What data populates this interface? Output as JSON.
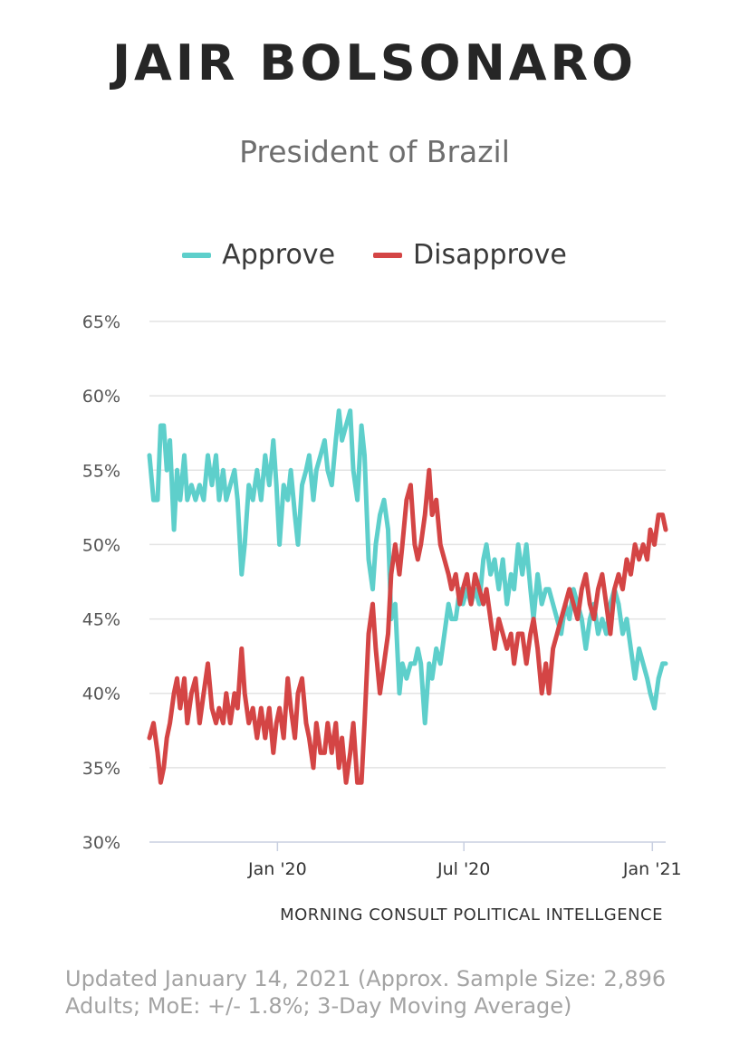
{
  "title": "JAIR BOLSONARO",
  "subtitle": "President of Brazil",
  "source": "MORNING CONSULT POLITICAL INTELLGENCE",
  "footnote": "Updated January 14, 2021 (Approx. Sample Size: 2,896 Adults; MoE: +/- 1.8%; 3-Day Moving Average)",
  "chart_data": {
    "type": "line",
    "title": "JAIR BOLSONARO",
    "subtitle": "President of Brazil",
    "xlabel": "",
    "ylabel": "",
    "ylim": [
      30,
      65
    ],
    "y_ticks": [
      "30%",
      "35%",
      "40%",
      "45%",
      "50%",
      "55%",
      "60%",
      "65%"
    ],
    "x_range": [
      "2019-08-29",
      "2021-01-14"
    ],
    "x_ticks": [
      {
        "label": "Jan '20",
        "date": "2020-01-01"
      },
      {
        "label": "Jul '20",
        "date": "2020-07-01"
      },
      {
        "label": "Jan '21",
        "date": "2021-01-01"
      }
    ],
    "legend_position": "top-center",
    "grid": true,
    "series": [
      {
        "name": "Approve",
        "color": "#5ecfcb",
        "points": [
          [
            "2019-08-29",
            56
          ],
          [
            "2019-09-02",
            53
          ],
          [
            "2019-09-06",
            53
          ],
          [
            "2019-09-09",
            58
          ],
          [
            "2019-09-12",
            58
          ],
          [
            "2019-09-15",
            55
          ],
          [
            "2019-09-18",
            57
          ],
          [
            "2019-09-22",
            51
          ],
          [
            "2019-09-25",
            55
          ],
          [
            "2019-09-28",
            53
          ],
          [
            "2019-10-02",
            56
          ],
          [
            "2019-10-05",
            53
          ],
          [
            "2019-10-09",
            54
          ],
          [
            "2019-10-13",
            53
          ],
          [
            "2019-10-17",
            54
          ],
          [
            "2019-10-21",
            53
          ],
          [
            "2019-10-25",
            56
          ],
          [
            "2019-10-29",
            54
          ],
          [
            "2019-11-02",
            56
          ],
          [
            "2019-11-05",
            53
          ],
          [
            "2019-11-09",
            55
          ],
          [
            "2019-11-12",
            53
          ],
          [
            "2019-11-16",
            54
          ],
          [
            "2019-11-20",
            55
          ],
          [
            "2019-11-23",
            53
          ],
          [
            "2019-11-27",
            48
          ],
          [
            "2019-11-30",
            50
          ],
          [
            "2019-12-04",
            54
          ],
          [
            "2019-12-08",
            53
          ],
          [
            "2019-12-12",
            55
          ],
          [
            "2019-12-16",
            53
          ],
          [
            "2019-12-20",
            56
          ],
          [
            "2019-12-24",
            54
          ],
          [
            "2019-12-28",
            57
          ],
          [
            "2019-12-31",
            54
          ],
          [
            "2020-01-03",
            50
          ],
          [
            "2020-01-07",
            54
          ],
          [
            "2020-01-11",
            53
          ],
          [
            "2020-01-14",
            55
          ],
          [
            "2020-01-18",
            52
          ],
          [
            "2020-01-21",
            50
          ],
          [
            "2020-01-25",
            54
          ],
          [
            "2020-01-29",
            55
          ],
          [
            "2020-02-01",
            56
          ],
          [
            "2020-02-05",
            53
          ],
          [
            "2020-02-08",
            55
          ],
          [
            "2020-02-12",
            56
          ],
          [
            "2020-02-16",
            57
          ],
          [
            "2020-02-19",
            55
          ],
          [
            "2020-02-23",
            54
          ],
          [
            "2020-02-27",
            57
          ],
          [
            "2020-03-01",
            59
          ],
          [
            "2020-03-04",
            57
          ],
          [
            "2020-03-08",
            58
          ],
          [
            "2020-03-12",
            59
          ],
          [
            "2020-03-15",
            55
          ],
          [
            "2020-03-19",
            53
          ],
          [
            "2020-03-23",
            58
          ],
          [
            "2020-03-26",
            56
          ],
          [
            "2020-03-30",
            49
          ],
          [
            "2020-04-03",
            47
          ],
          [
            "2020-04-06",
            50
          ],
          [
            "2020-04-10",
            52
          ],
          [
            "2020-04-14",
            53
          ],
          [
            "2020-04-18",
            51
          ],
          [
            "2020-04-21",
            45
          ],
          [
            "2020-04-25",
            46
          ],
          [
            "2020-04-29",
            40
          ],
          [
            "2020-05-02",
            42
          ],
          [
            "2020-05-06",
            41
          ],
          [
            "2020-05-10",
            42
          ],
          [
            "2020-05-14",
            42
          ],
          [
            "2020-05-17",
            43
          ],
          [
            "2020-05-20",
            42
          ],
          [
            "2020-05-24",
            38
          ],
          [
            "2020-05-28",
            42
          ],
          [
            "2020-05-31",
            41
          ],
          [
            "2020-06-04",
            43
          ],
          [
            "2020-06-08",
            42
          ],
          [
            "2020-06-12",
            44
          ],
          [
            "2020-06-16",
            46
          ],
          [
            "2020-06-19",
            45
          ],
          [
            "2020-06-23",
            45
          ],
          [
            "2020-06-27",
            47
          ],
          [
            "2020-06-30",
            46
          ],
          [
            "2020-07-04",
            47
          ],
          [
            "2020-07-08",
            46
          ],
          [
            "2020-07-12",
            47
          ],
          [
            "2020-07-16",
            46
          ],
          [
            "2020-07-20",
            49
          ],
          [
            "2020-07-23",
            50
          ],
          [
            "2020-07-27",
            48
          ],
          [
            "2020-07-31",
            49
          ],
          [
            "2020-08-04",
            47
          ],
          [
            "2020-08-08",
            49
          ],
          [
            "2020-08-12",
            46
          ],
          [
            "2020-08-16",
            48
          ],
          [
            "2020-08-19",
            47
          ],
          [
            "2020-08-23",
            50
          ],
          [
            "2020-08-27",
            48
          ],
          [
            "2020-08-31",
            50
          ],
          [
            "2020-09-04",
            47
          ],
          [
            "2020-09-07",
            45
          ],
          [
            "2020-09-11",
            48
          ],
          [
            "2020-09-15",
            46
          ],
          [
            "2020-09-19",
            47
          ],
          [
            "2020-09-22",
            47
          ],
          [
            "2020-09-26",
            46
          ],
          [
            "2020-09-30",
            45
          ],
          [
            "2020-10-04",
            44
          ],
          [
            "2020-10-08",
            46
          ],
          [
            "2020-10-12",
            45
          ],
          [
            "2020-10-16",
            47
          ],
          [
            "2020-10-20",
            46
          ],
          [
            "2020-10-24",
            45
          ],
          [
            "2020-10-28",
            43
          ],
          [
            "2020-11-01",
            45
          ],
          [
            "2020-11-05",
            46
          ],
          [
            "2020-11-09",
            44
          ],
          [
            "2020-11-13",
            45
          ],
          [
            "2020-11-17",
            44
          ],
          [
            "2020-11-21",
            46
          ],
          [
            "2020-11-25",
            47
          ],
          [
            "2020-11-29",
            46
          ],
          [
            "2020-12-03",
            44
          ],
          [
            "2020-12-07",
            45
          ],
          [
            "2020-12-11",
            43
          ],
          [
            "2020-12-15",
            41
          ],
          [
            "2020-12-19",
            43
          ],
          [
            "2020-12-23",
            42
          ],
          [
            "2020-12-27",
            41
          ],
          [
            "2020-12-30",
            40
          ],
          [
            "2021-01-03",
            39
          ],
          [
            "2021-01-07",
            41
          ],
          [
            "2021-01-11",
            42
          ],
          [
            "2021-01-14",
            42
          ]
        ]
      },
      {
        "name": "Disapprove",
        "color": "#d44545",
        "points": [
          [
            "2019-08-29",
            37
          ],
          [
            "2019-09-02",
            38
          ],
          [
            "2019-09-06",
            36
          ],
          [
            "2019-09-09",
            34
          ],
          [
            "2019-09-12",
            35
          ],
          [
            "2019-09-15",
            37
          ],
          [
            "2019-09-18",
            38
          ],
          [
            "2019-09-22",
            40
          ],
          [
            "2019-09-25",
            41
          ],
          [
            "2019-09-28",
            39
          ],
          [
            "2019-10-02",
            41
          ],
          [
            "2019-10-05",
            38
          ],
          [
            "2019-10-09",
            40
          ],
          [
            "2019-10-13",
            41
          ],
          [
            "2019-10-17",
            38
          ],
          [
            "2019-10-21",
            40
          ],
          [
            "2019-10-25",
            42
          ],
          [
            "2019-10-29",
            39
          ],
          [
            "2019-11-02",
            38
          ],
          [
            "2019-11-05",
            39
          ],
          [
            "2019-11-09",
            38
          ],
          [
            "2019-11-12",
            40
          ],
          [
            "2019-11-16",
            38
          ],
          [
            "2019-11-20",
            40
          ],
          [
            "2019-11-23",
            39
          ],
          [
            "2019-11-27",
            43
          ],
          [
            "2019-11-30",
            40
          ],
          [
            "2019-12-04",
            38
          ],
          [
            "2019-12-08",
            39
          ],
          [
            "2019-12-12",
            37
          ],
          [
            "2019-12-16",
            39
          ],
          [
            "2019-12-20",
            37
          ],
          [
            "2019-12-24",
            39
          ],
          [
            "2019-12-28",
            36
          ],
          [
            "2019-12-31",
            38
          ],
          [
            "2020-01-03",
            39
          ],
          [
            "2020-01-07",
            37
          ],
          [
            "2020-01-11",
            41
          ],
          [
            "2020-01-14",
            39
          ],
          [
            "2020-01-18",
            37
          ],
          [
            "2020-01-21",
            40
          ],
          [
            "2020-01-25",
            41
          ],
          [
            "2020-01-29",
            38
          ],
          [
            "2020-02-01",
            37
          ],
          [
            "2020-02-05",
            35
          ],
          [
            "2020-02-08",
            38
          ],
          [
            "2020-02-12",
            36
          ],
          [
            "2020-02-16",
            36
          ],
          [
            "2020-02-19",
            38
          ],
          [
            "2020-02-23",
            36
          ],
          [
            "2020-02-27",
            38
          ],
          [
            "2020-03-01",
            35
          ],
          [
            "2020-03-04",
            37
          ],
          [
            "2020-03-08",
            34
          ],
          [
            "2020-03-12",
            36
          ],
          [
            "2020-03-15",
            38
          ],
          [
            "2020-03-19",
            34
          ],
          [
            "2020-03-23",
            34
          ],
          [
            "2020-03-26",
            38
          ],
          [
            "2020-03-30",
            44
          ],
          [
            "2020-04-03",
            46
          ],
          [
            "2020-04-06",
            43
          ],
          [
            "2020-04-10",
            40
          ],
          [
            "2020-04-14",
            42
          ],
          [
            "2020-04-18",
            44
          ],
          [
            "2020-04-21",
            48
          ],
          [
            "2020-04-25",
            50
          ],
          [
            "2020-04-29",
            48
          ],
          [
            "2020-05-02",
            50
          ],
          [
            "2020-05-06",
            53
          ],
          [
            "2020-05-10",
            54
          ],
          [
            "2020-05-14",
            50
          ],
          [
            "2020-05-17",
            49
          ],
          [
            "2020-05-20",
            50
          ],
          [
            "2020-05-24",
            52
          ],
          [
            "2020-05-28",
            55
          ],
          [
            "2020-05-31",
            52
          ],
          [
            "2020-06-04",
            53
          ],
          [
            "2020-06-08",
            50
          ],
          [
            "2020-06-12",
            49
          ],
          [
            "2020-06-16",
            48
          ],
          [
            "2020-06-19",
            47
          ],
          [
            "2020-06-23",
            48
          ],
          [
            "2020-06-27",
            46
          ],
          [
            "2020-06-30",
            47
          ],
          [
            "2020-07-04",
            48
          ],
          [
            "2020-07-08",
            46
          ],
          [
            "2020-07-12",
            48
          ],
          [
            "2020-07-16",
            47
          ],
          [
            "2020-07-20",
            46
          ],
          [
            "2020-07-23",
            47
          ],
          [
            "2020-07-27",
            45
          ],
          [
            "2020-07-31",
            43
          ],
          [
            "2020-08-04",
            45
          ],
          [
            "2020-08-08",
            44
          ],
          [
            "2020-08-12",
            43
          ],
          [
            "2020-08-16",
            44
          ],
          [
            "2020-08-19",
            42
          ],
          [
            "2020-08-23",
            44
          ],
          [
            "2020-08-27",
            44
          ],
          [
            "2020-08-31",
            42
          ],
          [
            "2020-09-04",
            44
          ],
          [
            "2020-09-07",
            45
          ],
          [
            "2020-09-11",
            43
          ],
          [
            "2020-09-15",
            40
          ],
          [
            "2020-09-19",
            42
          ],
          [
            "2020-09-22",
            40
          ],
          [
            "2020-09-26",
            43
          ],
          [
            "2020-09-30",
            44
          ],
          [
            "2020-10-04",
            45
          ],
          [
            "2020-10-08",
            46
          ],
          [
            "2020-10-12",
            47
          ],
          [
            "2020-10-16",
            46
          ],
          [
            "2020-10-20",
            45
          ],
          [
            "2020-10-24",
            47
          ],
          [
            "2020-10-28",
            48
          ],
          [
            "2020-11-01",
            46
          ],
          [
            "2020-11-05",
            45
          ],
          [
            "2020-11-09",
            47
          ],
          [
            "2020-11-13",
            48
          ],
          [
            "2020-11-17",
            46
          ],
          [
            "2020-11-21",
            44
          ],
          [
            "2020-11-25",
            47
          ],
          [
            "2020-11-29",
            48
          ],
          [
            "2020-12-03",
            47
          ],
          [
            "2020-12-07",
            49
          ],
          [
            "2020-12-11",
            48
          ],
          [
            "2020-12-15",
            50
          ],
          [
            "2020-12-19",
            49
          ],
          [
            "2020-12-23",
            50
          ],
          [
            "2020-12-27",
            49
          ],
          [
            "2020-12-30",
            51
          ],
          [
            "2021-01-03",
            50
          ],
          [
            "2021-01-07",
            52
          ],
          [
            "2021-01-11",
            52
          ],
          [
            "2021-01-14",
            51
          ]
        ]
      }
    ]
  }
}
